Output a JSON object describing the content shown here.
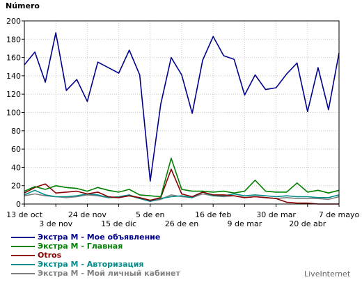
{
  "chart_data": {
    "type": "line",
    "ylabel": "Número",
    "ylim": [
      0,
      200
    ],
    "yticks": [
      0,
      20,
      40,
      60,
      80,
      100,
      120,
      140,
      160,
      180,
      200
    ],
    "grid": true,
    "x_tick_labels_row1": [
      "13 de oct",
      "24 de nov",
      "5 de en",
      "16 de feb",
      "30 de mar",
      "7 de mayo"
    ],
    "x_tick_labels_row2": [
      "3 de nov",
      "15 de dic",
      "26 de en",
      "9 de mar",
      "20 de abr"
    ],
    "legend_position": "bottom-left",
    "series": [
      {
        "name": "Экстра М - Мое объявление",
        "color": "#00008b",
        "values": [
          152,
          166,
          133,
          187,
          124,
          136,
          112,
          155,
          149,
          143,
          168,
          141,
          25,
          109,
          160,
          141,
          99,
          157,
          183,
          162,
          158,
          119,
          141,
          125,
          127,
          142,
          154,
          101,
          149,
          103,
          165
        ]
      },
      {
        "name": "Экстра М - Главная",
        "color": "#008000",
        "values": [
          14,
          19,
          16,
          20,
          18,
          17,
          14,
          18,
          15,
          13,
          16,
          10,
          9,
          8,
          50,
          16,
          14,
          14,
          13,
          14,
          12,
          14,
          26,
          14,
          13,
          13,
          23,
          13,
          15,
          12,
          15
        ]
      },
      {
        "name": "Otros",
        "color": "#8b0000",
        "values": [
          12,
          18,
          22,
          12,
          13,
          14,
          11,
          13,
          8,
          7,
          9,
          7,
          4,
          7,
          38,
          11,
          8,
          13,
          10,
          10,
          9,
          7,
          8,
          7,
          6,
          2,
          1,
          1,
          0,
          0,
          0
        ]
      },
      {
        "name": "Экстра М - Авторизация",
        "color": "#008b8b",
        "values": [
          10,
          15,
          10,
          8,
          8,
          9,
          11,
          10,
          7,
          8,
          10,
          6,
          3,
          6,
          8,
          9,
          7,
          13,
          9,
          9,
          11,
          9,
          10,
          9,
          8,
          9,
          8,
          8,
          7,
          7,
          10
        ]
      },
      {
        "name": "Экстра М - Мой личный кабинет",
        "color": "#808080",
        "values": [
          9,
          11,
          9,
          8,
          7,
          8,
          10,
          9,
          7,
          7,
          9,
          6,
          3,
          5,
          10,
          8,
          7,
          11,
          9,
          8,
          9,
          7,
          8,
          7,
          6,
          7,
          6,
          6,
          6,
          5,
          8
        ]
      }
    ]
  },
  "brand": "LiveInternet"
}
